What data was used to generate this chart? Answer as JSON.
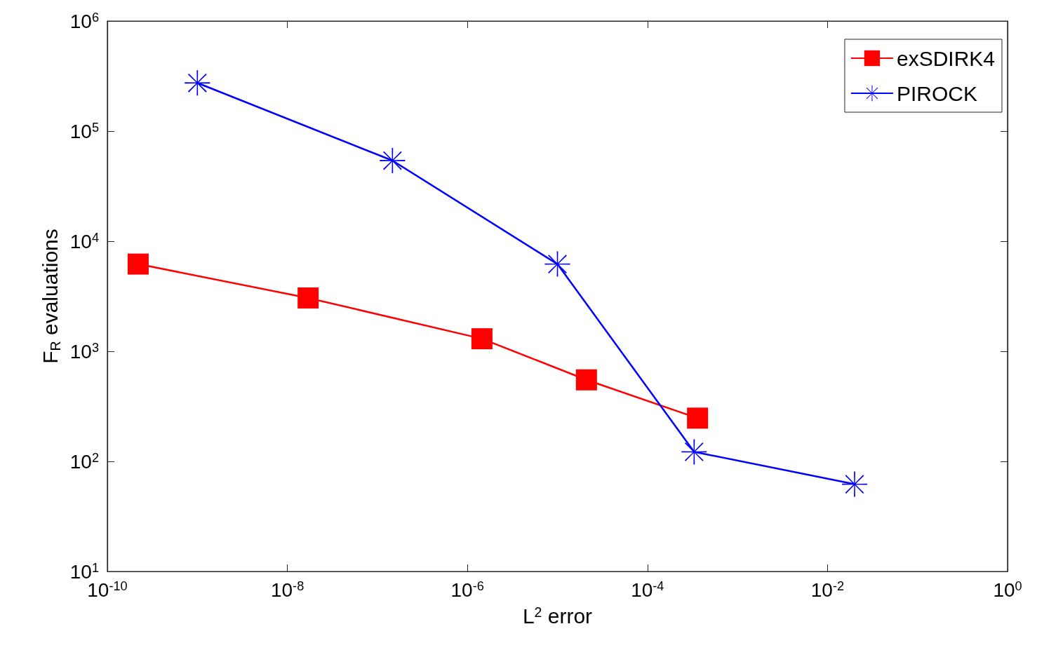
{
  "chart_data": {
    "type": "line",
    "xlabel": "L$^{2}$ error",
    "ylabel": "F$_{R}$ evaluations",
    "log": "xy",
    "grid": false,
    "legend": "top right",
    "xlim": [
      1e-10,
      1
    ],
    "ylim": [
      10,
      1000000
    ],
    "xticks": [
      {
        "value": 1e-10,
        "label": "10$^{-10}$"
      },
      {
        "value": 1e-08,
        "label": "10$^{-8}$"
      },
      {
        "value": 1e-06,
        "label": "10$^{-6}$"
      },
      {
        "value": 0.0001,
        "label": "10$^{-4}$"
      },
      {
        "value": 0.01,
        "label": "10$^{-2}$"
      },
      {
        "value": 1,
        "label": "10$^{0}$"
      }
    ],
    "yticks": [
      {
        "value": 10,
        "label": "10$^{1}$"
      },
      {
        "value": 100,
        "label": "10$^{2}$"
      },
      {
        "value": 1000,
        "label": "10$^{3}$"
      },
      {
        "value": 10000,
        "label": "10$^{4}$"
      },
      {
        "value": 100000,
        "label": "10$^{5}$"
      },
      {
        "value": 1000000,
        "label": "10$^{6}$"
      }
    ],
    "series": [
      {
        "name": "exSDIRK4",
        "color": "#ff0000",
        "marker": "square",
        "x": [
          2.2e-10,
          1.7e-08,
          1.45e-06,
          2.1e-05,
          0.00036
        ],
        "values": [
          6200,
          3050,
          1300,
          550,
          247
        ]
      },
      {
        "name": "PIROCK",
        "color": "#0000ff",
        "marker": "star",
        "x": [
          1e-09,
          1.47e-07,
          1e-05,
          0.00033,
          0.02
        ],
        "values": [
          274000,
          54000,
          6200,
          122,
          62
        ]
      }
    ]
  }
}
